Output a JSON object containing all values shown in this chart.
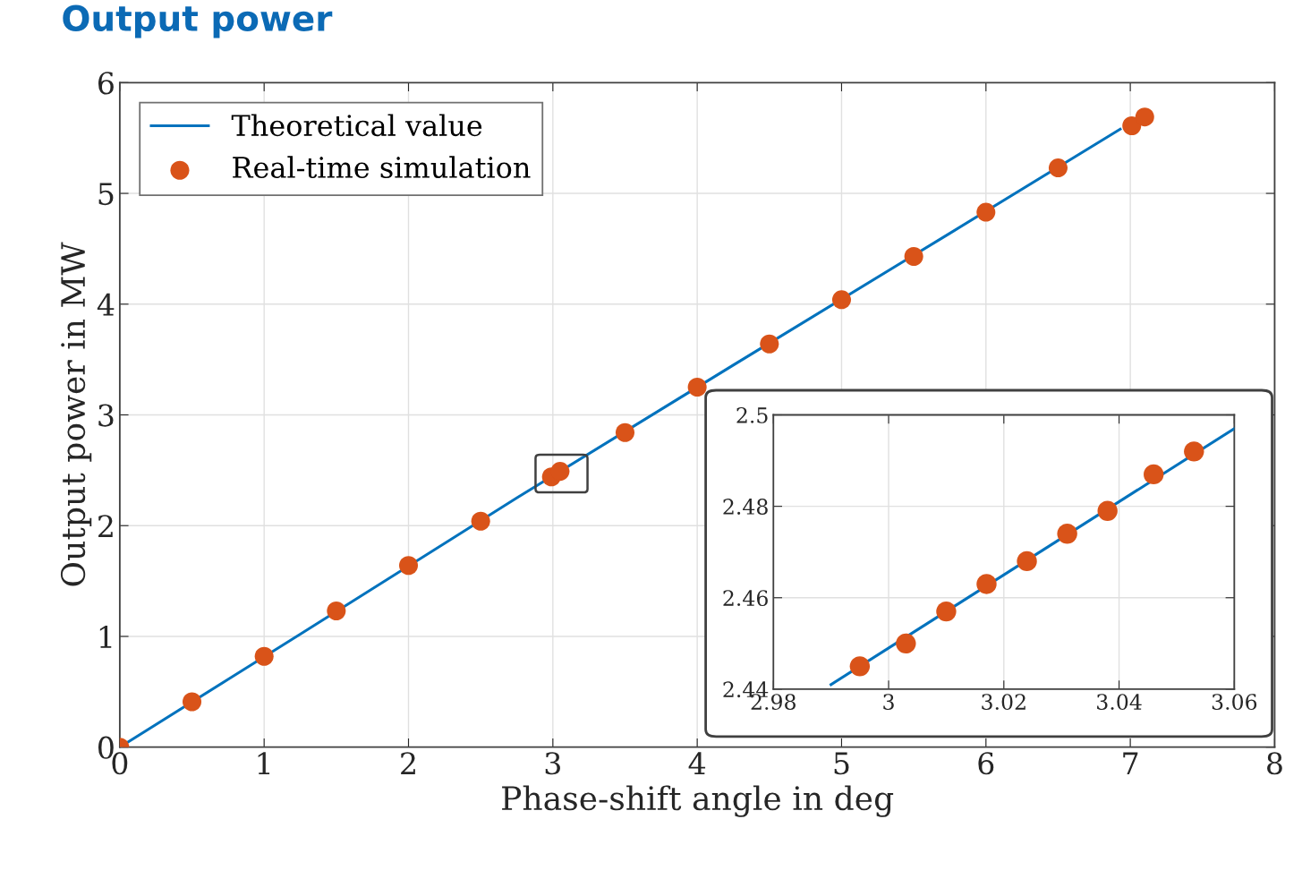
{
  "chart_data": [
    {
      "type": "scatter",
      "title": "Output power",
      "xlabel": "Phase-shift angle in deg",
      "ylabel": "Output power in MW",
      "xlim": [
        0,
        8
      ],
      "ylim": [
        0,
        6
      ],
      "xticks": [
        0,
        1,
        2,
        3,
        4,
        5,
        6,
        7,
        8
      ],
      "yticks": [
        0,
        1,
        2,
        3,
        4,
        5,
        6
      ],
      "grid": true,
      "legend": "top left",
      "series": [
        {
          "name": "Theoretical value",
          "type": "line",
          "marker": "none",
          "color": "#0072bd",
          "x": [
            0,
            1.25,
            2.75,
            4.25,
            5.75,
            6.93
          ],
          "values": [
            0,
            1.02,
            2.25,
            3.45,
            4.64,
            5.58
          ]
        },
        {
          "name": "Real-time simulation",
          "marker": "circle",
          "color": "#d95319",
          "x": [
            0,
            0.5,
            1,
            1.5,
            2,
            2.5,
            2.99,
            3.05,
            3.5,
            4,
            4.5,
            5,
            5.5,
            6,
            6.5,
            7.01,
            7.1
          ],
          "values": [
            0,
            0.41,
            0.82,
            1.23,
            1.64,
            2.04,
            2.44,
            2.49,
            2.84,
            3.25,
            3.64,
            4.04,
            4.43,
            4.83,
            5.23,
            5.61,
            5.69
          ]
        }
      ]
    },
    {
      "type": "scatter",
      "xlim": [
        2.98,
        3.06
      ],
      "ylim": [
        2.44,
        2.5
      ],
      "xticks": [
        2.98,
        3,
        3.02,
        3.04,
        3.06
      ],
      "yticks": [
        2.44,
        2.46,
        2.48,
        2.5
      ],
      "grid": true,
      "series": [
        {
          "type": "line",
          "marker": "none",
          "color": "#0072bd",
          "x": [
            2.99,
            3.06
          ],
          "values": [
            2.441,
            2.497
          ]
        },
        {
          "marker": "circle",
          "color": "#d95319",
          "x": [
            2.995,
            3.003,
            3.01,
            3.017,
            3.024,
            3.031,
            3.038,
            3.046,
            3.053
          ],
          "values": [
            2.445,
            2.45,
            2.457,
            2.463,
            2.468,
            2.474,
            2.479,
            2.487,
            2.492
          ]
        }
      ]
    }
  ]
}
